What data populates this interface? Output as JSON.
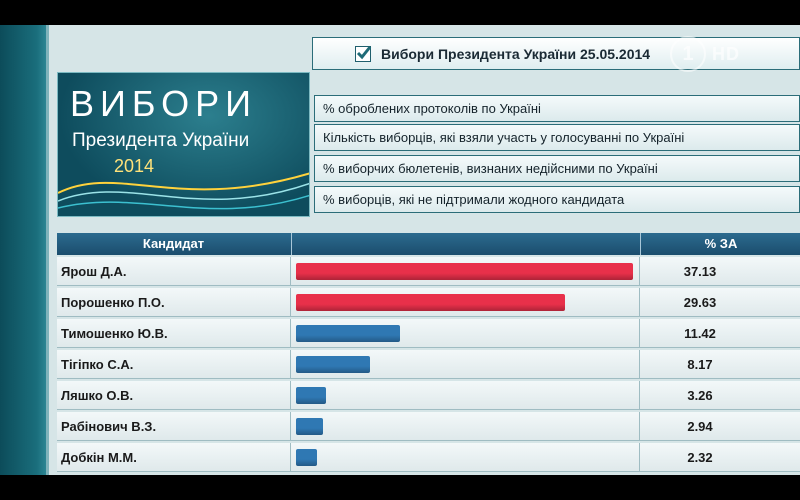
{
  "header": {
    "title": "Вибори Президента України 25.05.2014",
    "channel_logo": "1",
    "channel_hd": "HD"
  },
  "banner": {
    "big": "ВИБОРИ",
    "sub": "Президента України",
    "year": "2014"
  },
  "info_rows": [
    "% оброблених протоколів по Україні",
    "Кількість виборців, які взяли участь у голосуванні по Україні",
    "% виборчих бюлетенів, визнаних недійсними по Україні",
    "% виборців, які не підтримали жодного кандидата"
  ],
  "table": {
    "col_candidate": "Кандидат",
    "col_percent": "% ЗА"
  },
  "colors": {
    "leader_bar": "#e8304a",
    "other_bar": "#2f78b3"
  },
  "chart_data": {
    "type": "bar",
    "categories": [
      "Ярош Д.А.",
      "Порошенко П.О.",
      "Тимошенко Ю.В.",
      "Тігіпко С.А.",
      "Ляшко О.В.",
      "Рабінович В.З.",
      "Добкін М.М."
    ],
    "values": [
      37.13,
      29.63,
      11.42,
      8.17,
      3.26,
      2.94,
      2.32
    ],
    "value_labels": [
      "37.13",
      "29.63",
      "11.42",
      "8.17",
      "3.26",
      "2.94",
      "2.32"
    ],
    "highlighted": [
      true,
      true,
      false,
      false,
      false,
      false,
      false
    ],
    "ylim": [
      0,
      37.13
    ]
  }
}
